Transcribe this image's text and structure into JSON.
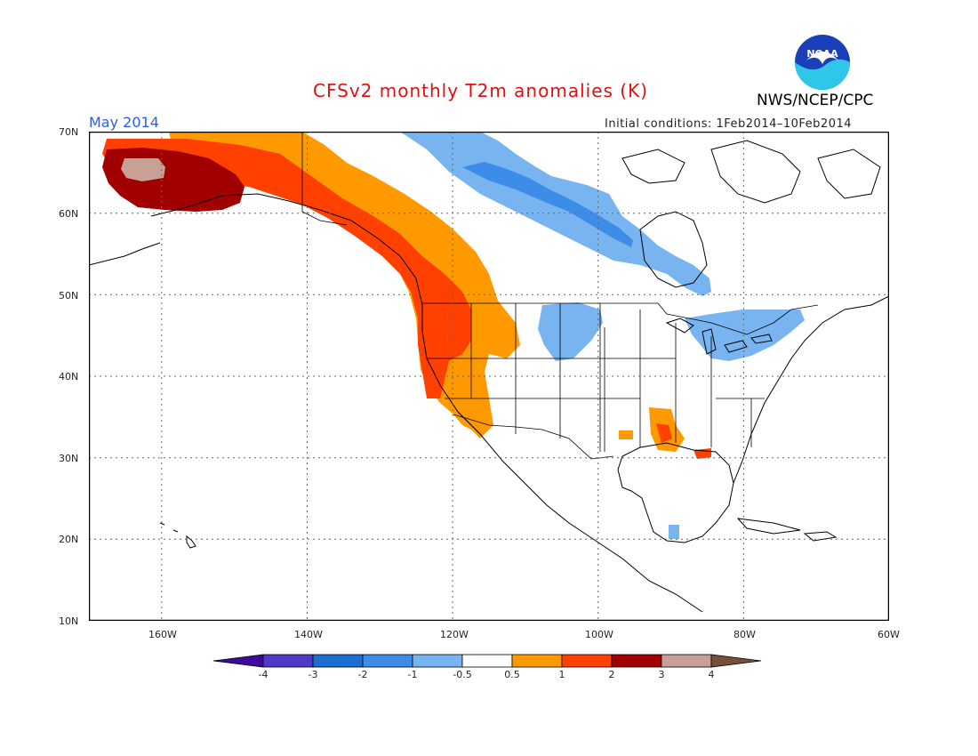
{
  "title": "CFSv2 monthly T2m anomalies (K)",
  "period": "May 2014",
  "initial_conditions": "Initial conditions: 1Feb2014–10Feb2014",
  "agency": "NWS/NCEP/CPC",
  "logo_text": "NOAA",
  "map": {
    "extent": {
      "lon": [
        -170,
        -60
      ],
      "lat": [
        10,
        70
      ]
    },
    "lat_labels": [
      "70N",
      "60N",
      "50N",
      "40N",
      "30N",
      "20N",
      "10N"
    ],
    "lon_labels": [
      "160W",
      "140W",
      "120W",
      "100W",
      "80W",
      "60W"
    ]
  },
  "legend": {
    "labels": [
      "-4",
      "-3",
      "-2",
      "-1",
      "-0.5",
      "0.5",
      "1",
      "2",
      "3",
      "4"
    ],
    "colors": [
      "#3c0a9c",
      "#5038c8",
      "#1e6ed2",
      "#3c8ce8",
      "#78b4f0",
      "#ffffff",
      "#ff9900",
      "#ff4000",
      "#a00000",
      "#c8a096",
      "#784f3c"
    ]
  },
  "anomaly_regions": [
    {
      "label": "Alaska warm core",
      "category": "3 to 4"
    },
    {
      "label": "Pacific Northwest coast",
      "category": "1 to 2"
    },
    {
      "label": "Western Canada belt",
      "category": "-1 to -0.5"
    },
    {
      "label": "Great Lakes",
      "category": "-1 to -0.5"
    }
  ]
}
